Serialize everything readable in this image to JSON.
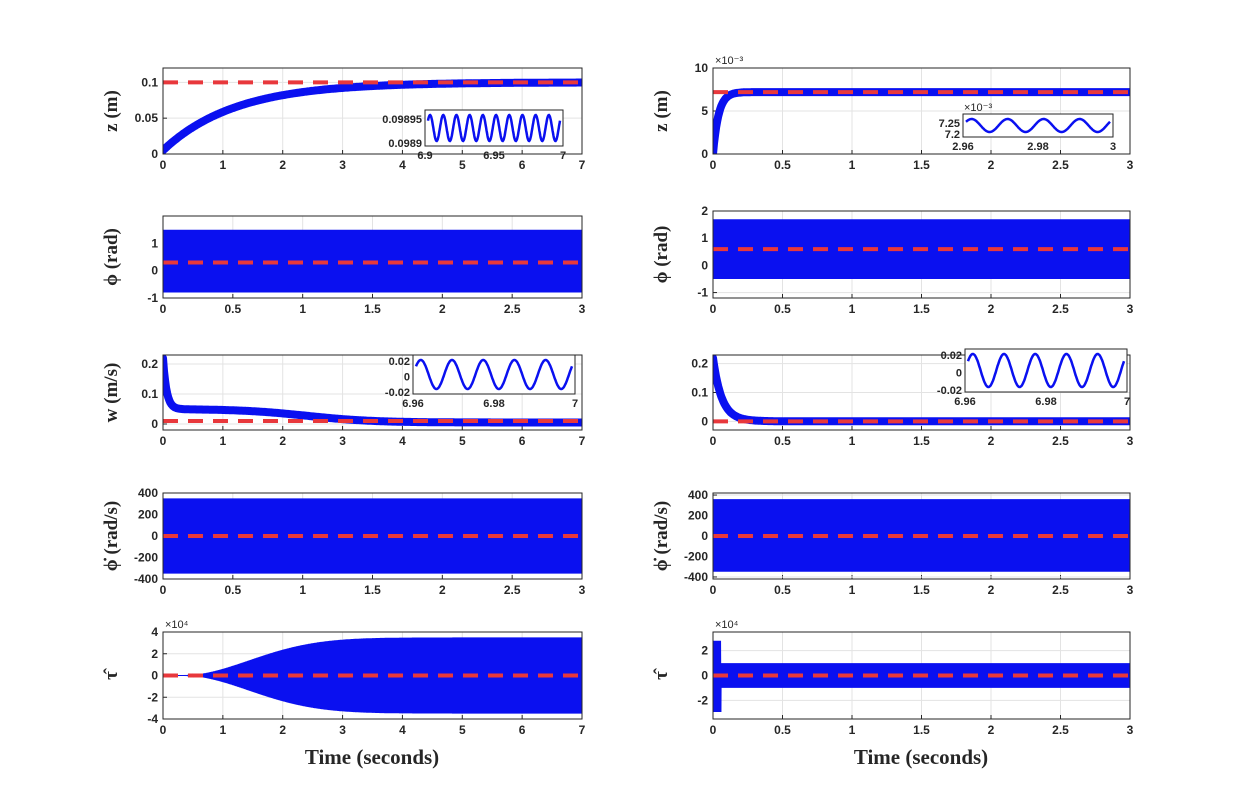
{
  "figure": {
    "xlabel": "Time (seconds)",
    "colors": {
      "signal": "#0a10f0",
      "reference": "#e8383c",
      "grid": "#e3e3e3",
      "axis": "#262626"
    }
  },
  "chart_data": [
    {
      "id": "L1",
      "type": "line",
      "ylabel": "z (m)",
      "xlim": [
        0,
        7
      ],
      "ylim": [
        0,
        0.12
      ],
      "xticks": [
        "0",
        "1",
        "2",
        "3",
        "4",
        "5",
        "6",
        "7"
      ],
      "yticks": [
        "0",
        "0.05",
        "0.1"
      ],
      "ytick_values": [
        0,
        0.05,
        0.1
      ],
      "signal": {
        "kind": "rise",
        "final": 0.1,
        "start": 0.005,
        "tau": 1.2
      },
      "reference": 0.1,
      "inset": {
        "xticks": [
          "6.9",
          "6.95",
          "7"
        ],
        "yticks": [
          "0.09895",
          "0.0989"
        ],
        "cycles": 10
      }
    },
    {
      "id": "R1",
      "type": "line",
      "ylabel": "z (m)",
      "exponent": "×10⁻³",
      "xlim": [
        0,
        3
      ],
      "ylim": [
        0,
        0.01
      ],
      "xticks": [
        "0",
        "0.5",
        "1",
        "1.5",
        "2",
        "2.5",
        "3"
      ],
      "yticks": [
        "0",
        "5",
        "10"
      ],
      "ytick_values": [
        0,
        0.005,
        0.01
      ],
      "signal": {
        "kind": "rise",
        "final": 0.0072,
        "start": 0.0,
        "tau": 0.04
      },
      "reference": 0.0072,
      "inset": {
        "exponent": "×10⁻³",
        "xticks": [
          "2.96",
          "2.98",
          "3"
        ],
        "yticks": [
          "7.25",
          "7.2"
        ],
        "cycles": 4
      }
    },
    {
      "id": "L2",
      "type": "line",
      "ylabel": "ϕ (rad)",
      "xlim": [
        0,
        3
      ],
      "ylim": [
        -1,
        2
      ],
      "xticks": [
        "0",
        "0.5",
        "1",
        "1.5",
        "2",
        "2.5",
        "3"
      ],
      "yticks": [
        "-1",
        "0",
        "1"
      ],
      "ytick_values": [
        -1,
        0,
        1
      ],
      "signal": {
        "kind": "band",
        "lo": -0.8,
        "hi": 1.5
      },
      "reference": 0.3
    },
    {
      "id": "R2",
      "type": "line",
      "ylabel": "ϕ (rad)",
      "xlim": [
        0,
        3
      ],
      "ylim": [
        -1.2,
        2
      ],
      "xticks": [
        "0",
        "0.5",
        "1",
        "1.5",
        "2",
        "2.5",
        "3"
      ],
      "yticks": [
        "-1",
        "0",
        "1",
        "2"
      ],
      "ytick_values": [
        -1,
        0,
        1,
        2
      ],
      "signal": {
        "kind": "band",
        "lo": -0.5,
        "hi": 1.7
      },
      "reference": 0.6
    },
    {
      "id": "L3",
      "type": "line",
      "ylabel": "w (m/s)",
      "xlim": [
        0,
        7
      ],
      "ylim": [
        -0.02,
        0.23
      ],
      "xticks": [
        "0",
        "1",
        "2",
        "3",
        "4",
        "5",
        "6",
        "7"
      ],
      "yticks": [
        "0",
        "0.1",
        "0.2"
      ],
      "ytick_values": [
        0,
        0.1,
        0.2
      ],
      "signal": {
        "kind": "decay",
        "initial": 0.22,
        "plateau": 0.05,
        "final": 0.005
      },
      "reference": 0.01,
      "inset": {
        "xticks": [
          "6.96",
          "6.98",
          "7"
        ],
        "yticks": [
          "0.02",
          "0",
          "-0.02"
        ],
        "cycles": 5
      }
    },
    {
      "id": "R3",
      "type": "line",
      "ylabel": "",
      "xlim": [
        0,
        3
      ],
      "ylim": [
        -0.03,
        0.23
      ],
      "xticks": [
        "0",
        "0.5",
        "1",
        "1.5",
        "2",
        "2.5",
        "3"
      ],
      "yticks": [
        "0",
        "0.1",
        "0.2"
      ],
      "ytick_values": [
        0,
        0.1,
        0.2
      ],
      "signal": {
        "kind": "decay",
        "initial": 0.22,
        "plateau": 0.02,
        "final": 0.0
      },
      "reference": 0.0,
      "inset": {
        "xticks": [
          "6.96",
          "6.98",
          "7"
        ],
        "yticks": [
          "0.02",
          "0",
          "-0.02"
        ],
        "cycles": 5
      }
    },
    {
      "id": "L4",
      "type": "line",
      "ylabel": "ϕ̇ (rad/s)",
      "xlim": [
        0,
        3
      ],
      "ylim": [
        -400,
        400
      ],
      "xticks": [
        "0",
        "0.5",
        "1",
        "1.5",
        "2",
        "2.5",
        "3"
      ],
      "yticks": [
        "-400",
        "-200",
        "0",
        "200",
        "400"
      ],
      "ytick_values": [
        -400,
        -200,
        0,
        200,
        400
      ],
      "signal": {
        "kind": "band",
        "lo": -350,
        "hi": 350
      },
      "reference": 0
    },
    {
      "id": "R4",
      "type": "line",
      "ylabel": "ϕ̇ (rad/s)",
      "xlim": [
        0,
        3
      ],
      "ylim": [
        -420,
        420
      ],
      "xticks": [
        "0",
        "0.5",
        "1",
        "1.5",
        "2",
        "2.5",
        "3"
      ],
      "yticks": [
        "-400",
        "-200",
        "0",
        "200",
        "400"
      ],
      "ytick_values": [
        -400,
        -200,
        0,
        200,
        400
      ],
      "signal": {
        "kind": "band",
        "lo": -350,
        "hi": 360
      },
      "reference": 0
    },
    {
      "id": "L5",
      "type": "line",
      "ylabel": "τ̂",
      "exponent": "×10⁴",
      "xlim": [
        0,
        7
      ],
      "ylim": [
        -40000,
        40000
      ],
      "xticks": [
        "0",
        "1",
        "2",
        "3",
        "4",
        "5",
        "6",
        "7"
      ],
      "yticks": [
        "-4",
        "-2",
        "0",
        "2",
        "4"
      ],
      "ytick_values": [
        -40000,
        -20000,
        0,
        20000,
        40000
      ],
      "signal": {
        "kind": "grow",
        "amp": 35000,
        "start": 0.3
      },
      "reference": 0
    },
    {
      "id": "R5",
      "type": "line",
      "ylabel": "τ̂",
      "exponent": "×10⁴",
      "xlim": [
        0,
        3
      ],
      "ylim": [
        -35000,
        35000
      ],
      "xticks": [
        "0",
        "0.5",
        "1",
        "1.5",
        "2",
        "2.5",
        "3"
      ],
      "yticks": [
        "-2",
        "0",
        "2"
      ],
      "ytick_values": [
        -20000,
        0,
        20000
      ],
      "signal": {
        "kind": "spike",
        "amp": 10000,
        "peak": 28000
      },
      "reference": 0
    }
  ]
}
